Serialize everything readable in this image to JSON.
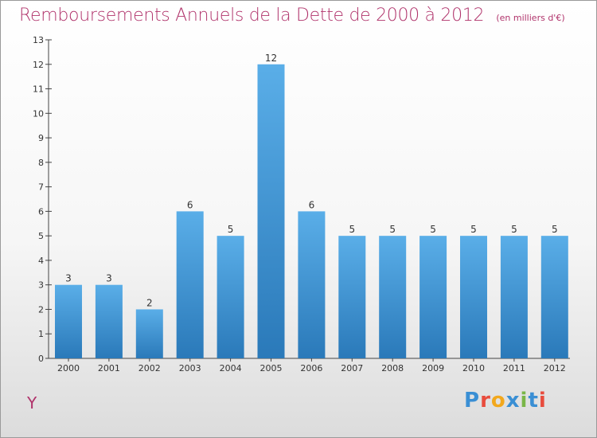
{
  "page": {
    "commune": "Y",
    "logo_text": "Proxiti"
  },
  "colors": {
    "title": "#b0336b",
    "bar_top": "#5aaee8",
    "bar_bottom": "#2a79b9",
    "logo": [
      "#3a8fd4",
      "#e84c3d",
      "#f2a81d",
      "#3a8fd4",
      "#7ab648",
      "#3a8fd4",
      "#e84c3d"
    ]
  },
  "chart_data": {
    "type": "bar",
    "title": "Remboursements Annuels de la Dette de 2000 à 2012",
    "subtitle": "(en milliers d'€)",
    "categories": [
      "2000",
      "2001",
      "2002",
      "2003",
      "2004",
      "2005",
      "2006",
      "2007",
      "2008",
      "2009",
      "2010",
      "2011",
      "2012"
    ],
    "values": [
      3,
      3,
      2,
      6,
      5,
      12,
      6,
      5,
      5,
      5,
      5,
      5,
      5
    ],
    "data_labels": [
      "3",
      "3",
      "2",
      "6",
      "5",
      "12",
      "6",
      "5",
      "5",
      "5",
      "5",
      "5",
      "5"
    ],
    "ylim": [
      0,
      13
    ],
    "yticks": [
      "0",
      "1",
      "2",
      "3",
      "4",
      "5",
      "6",
      "7",
      "8",
      "9",
      "10",
      "11",
      "12",
      "13"
    ],
    "xlabel": "",
    "ylabel": "",
    "grid": false,
    "legend": "none"
  }
}
